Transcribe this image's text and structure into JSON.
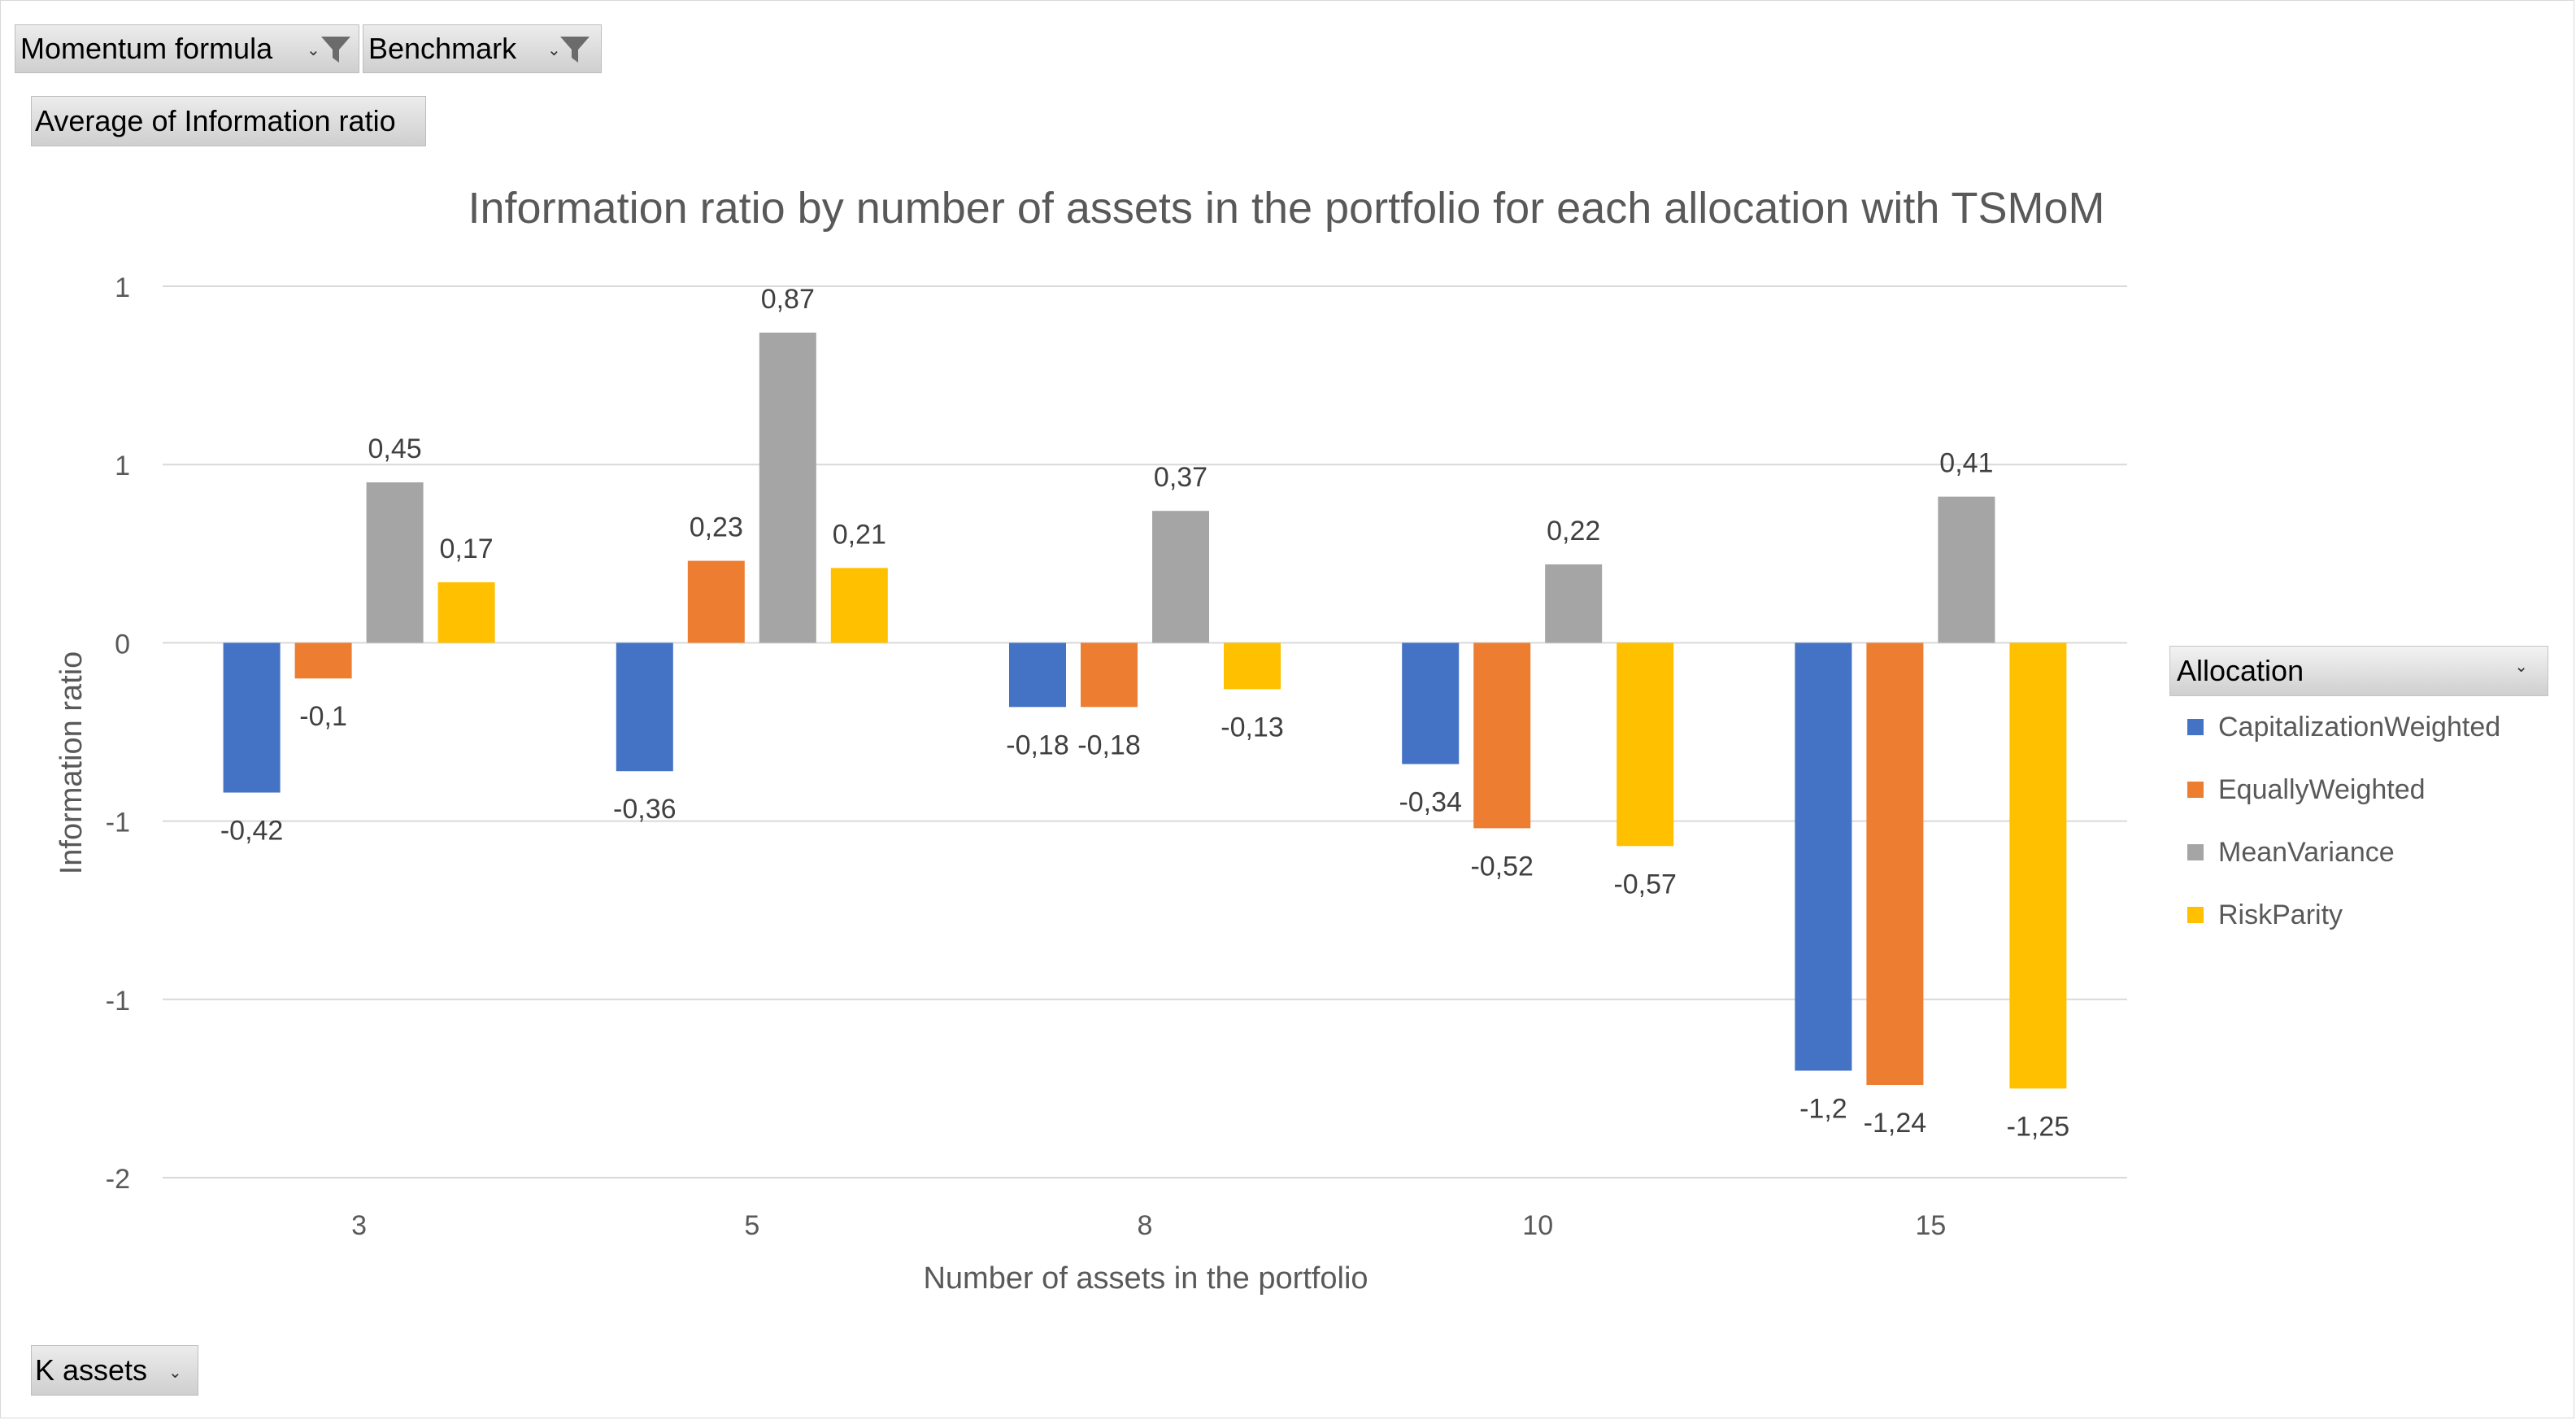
{
  "filters": {
    "momentum_formula": "Momentum formula",
    "benchmark": "Benchmark",
    "values_field": "Average of Information ratio",
    "axis_field": "K assets"
  },
  "legend": {
    "title": "Allocation"
  },
  "colors": {
    "CapitalizationWeighted": "#4472c4",
    "EquallyWeighted": "#ed7d31",
    "MeanVariance": "#a5a5a5",
    "RiskParity": "#ffc000"
  },
  "chart_data": {
    "type": "bar",
    "title": "Information ratio by number of assets in the portfolio for each allocation with TSMoM",
    "xlabel": "Number of assets in the portfolio",
    "ylabel": "Information ratio",
    "categories": [
      "3",
      "5",
      "8",
      "10",
      "15"
    ],
    "ylim": [
      -1.5,
      1
    ],
    "yticks": [
      1,
      0.5,
      0,
      -0.5,
      -1,
      -1.5
    ],
    "ytick_labels": [
      "1",
      "1",
      "0",
      "-1",
      "-1",
      "-2"
    ],
    "grid": true,
    "legend_position": "right",
    "series": [
      {
        "name": "CapitalizationWeighted",
        "values": [
          -0.42,
          -0.36,
          -0.18,
          -0.34,
          -1.2
        ],
        "labels": [
          "-0,42",
          "-0,36",
          "-0,18",
          "-0,34",
          "-1,2"
        ]
      },
      {
        "name": "EquallyWeighted",
        "values": [
          -0.1,
          0.23,
          -0.18,
          -0.52,
          -1.24
        ],
        "labels": [
          "-0,1",
          "0,23",
          "-0,18",
          "-0,52",
          "-1,24"
        ]
      },
      {
        "name": "MeanVariance",
        "values": [
          0.45,
          0.87,
          0.37,
          0.22,
          0.41
        ],
        "labels": [
          "0,45",
          "0,87",
          "0,37",
          "0,22",
          "0,41"
        ]
      },
      {
        "name": "RiskParity",
        "values": [
          0.17,
          0.21,
          -0.13,
          -0.57,
          -1.25
        ],
        "labels": [
          "0,17",
          "0,21",
          "-0,13",
          "-0,57",
          "-1,25"
        ]
      }
    ]
  }
}
